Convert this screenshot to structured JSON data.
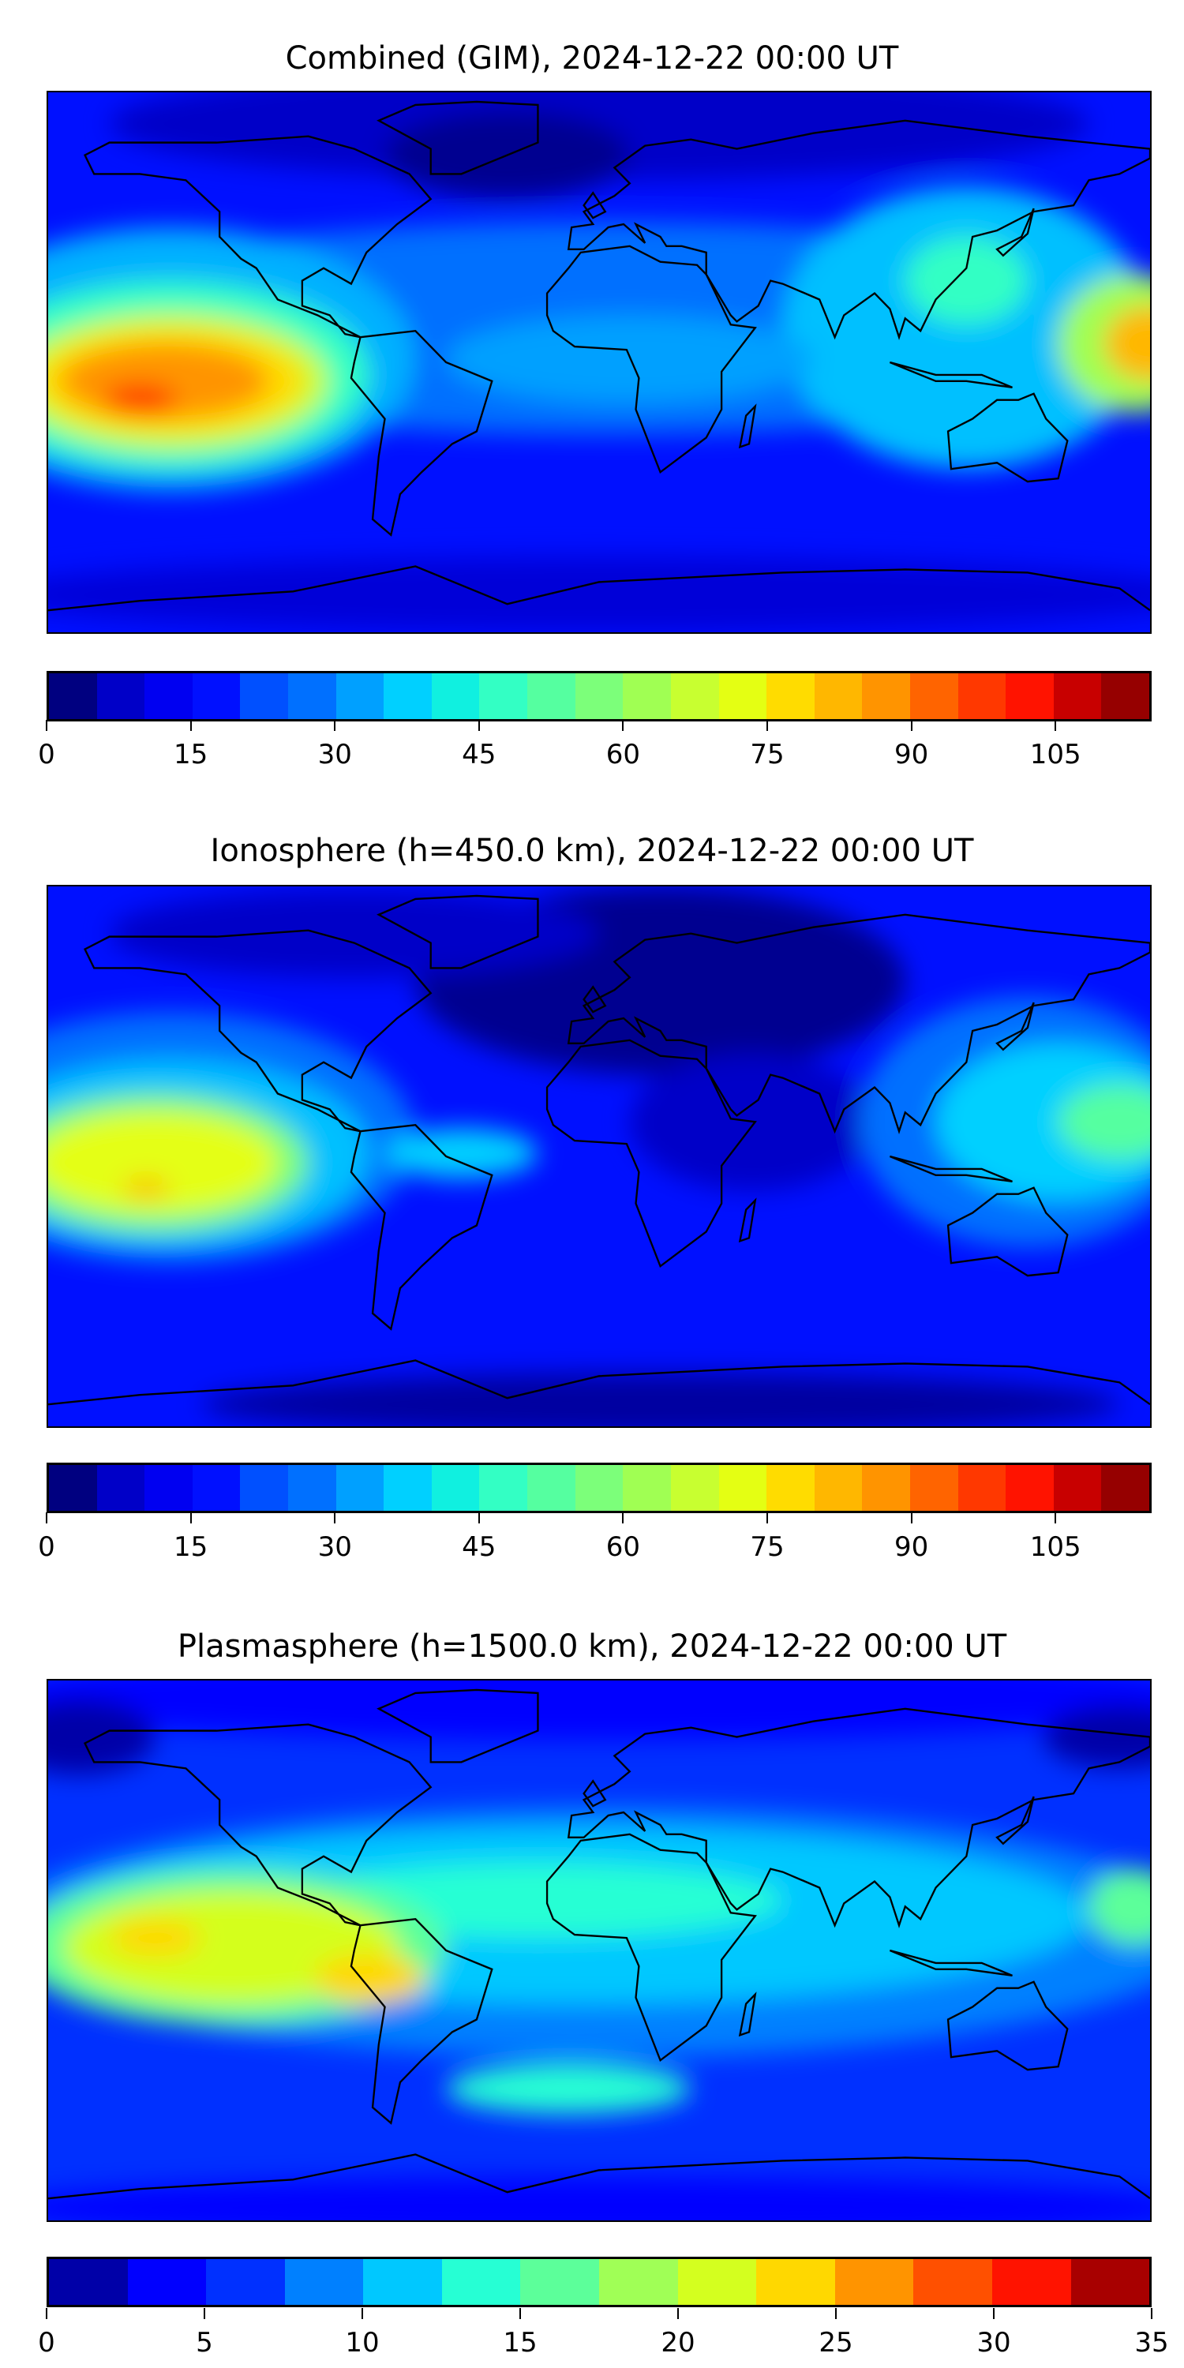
{
  "chart_data": [
    {
      "type": "heatmap",
      "title": "Combined (GIM), 2024-12-22 00:00 UT",
      "projection": "equirectangular world map with coastlines",
      "colorbar": {
        "range": [
          0,
          115
        ],
        "step": 5,
        "ticks": [
          0,
          15,
          30,
          45,
          60,
          75,
          90,
          105
        ],
        "tick_labels": [
          "0",
          "15",
          "30",
          "45",
          "60",
          "75",
          "90",
          "105"
        ],
        "colors": [
          "#000080",
          "#0000c8",
          "#0000f1",
          "#0010ff",
          "#0050ff",
          "#0070ff",
          "#00a0ff",
          "#00d0ff",
          "#10f0e0",
          "#33ffc4",
          "#55ffa0",
          "#7cff7a",
          "#a0ff53",
          "#c8ff30",
          "#e4ff13",
          "#ffdc00",
          "#ffb700",
          "#ff9400",
          "#ff6400",
          "#ff3800",
          "#ff1300",
          "#c80000",
          "#960000"
        ]
      },
      "features": "maximum ~95-100 over central South Pacific; ~75-85 over western Pacific near dateline; minimum 0-10 over North Atlantic/Arctic"
    },
    {
      "type": "heatmap",
      "title": "Ionosphere  (h=450.0 km), 2024-12-22 00:00 UT",
      "projection": "equirectangular world map with coastlines",
      "colorbar": {
        "range": [
          0,
          115
        ],
        "step": 5,
        "ticks": [
          0,
          15,
          30,
          45,
          60,
          75,
          90,
          105
        ],
        "tick_labels": [
          "0",
          "15",
          "30",
          "45",
          "60",
          "75",
          "90",
          "105"
        ],
        "colors": [
          "#000080",
          "#0000c8",
          "#0000f1",
          "#0010ff",
          "#0050ff",
          "#0070ff",
          "#00a0ff",
          "#00d0ff",
          "#10f0e0",
          "#33ffc4",
          "#55ffa0",
          "#7cff7a",
          "#a0ff53",
          "#c8ff30",
          "#e4ff13",
          "#ffdc00",
          "#ffb700",
          "#ff9400",
          "#ff6400",
          "#ff3800",
          "#ff1300",
          "#c80000",
          "#960000"
        ]
      },
      "features": "maximum ~75-80 over central South Pacific; ~55-65 over western Pacific; minimum 0-5 over North Atlantic, Europe, Africa"
    },
    {
      "type": "heatmap",
      "title": "Plasmasphere (h=1500.0 km), 2024-12-22 00:00 UT",
      "projection": "equirectangular world map with coastlines",
      "colorbar": {
        "range": [
          0,
          35
        ],
        "step": 2.5,
        "ticks": [
          0,
          5,
          10,
          15,
          20,
          25,
          30,
          35
        ],
        "tick_labels": [
          "0",
          "5",
          "10",
          "15",
          "20",
          "25",
          "30",
          "35"
        ],
        "colors": [
          "#0000a8",
          "#0000ff",
          "#0030ff",
          "#0080ff",
          "#00c8ff",
          "#26ffd4",
          "#5cff9a",
          "#a0ff56",
          "#d4ff1f",
          "#ffd800",
          "#ff9400",
          "#ff5000",
          "#ff1300",
          "#a80000"
        ]
      },
      "features": "maximum ~22-25 over South Pacific and South America; broad 10-15 band across low latitudes; minimum ~2-5 at high latitudes"
    }
  ]
}
